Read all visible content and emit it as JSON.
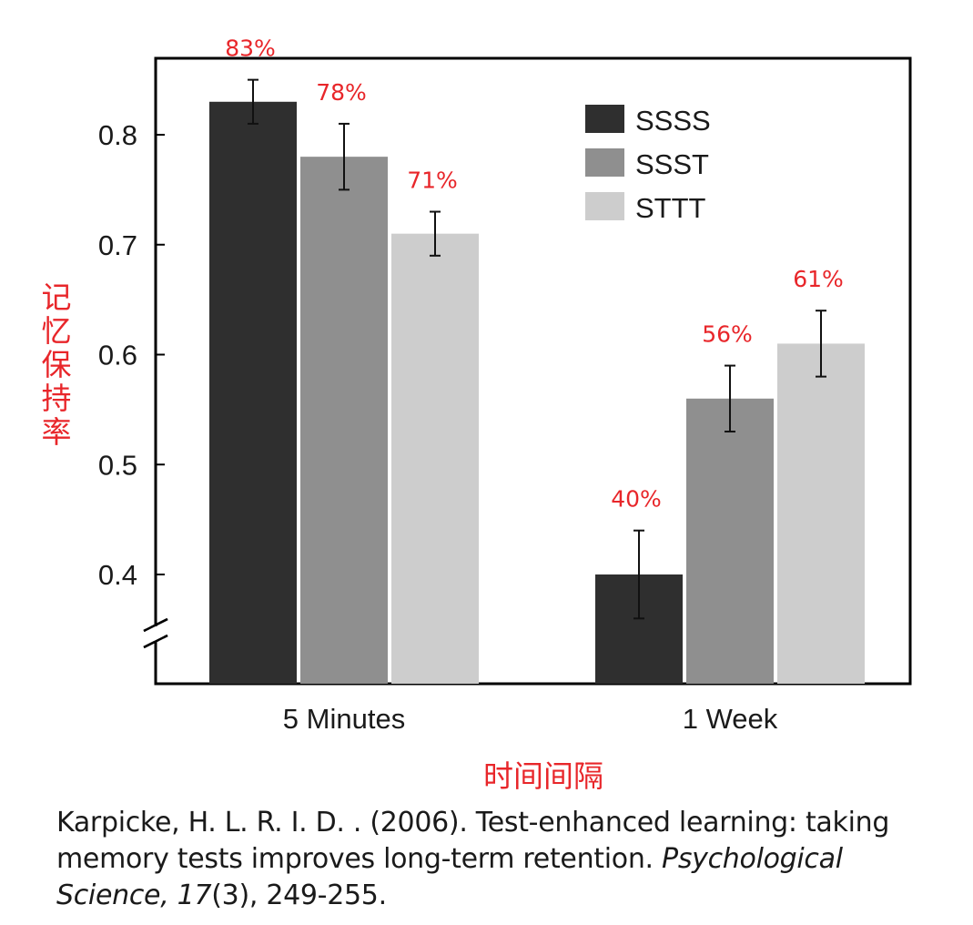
{
  "chart_data": {
    "type": "bar",
    "categories": [
      "5 Minutes",
      "1 Week"
    ],
    "series": [
      {
        "name": "SSSS",
        "values": [
          0.83,
          0.4
        ],
        "errors": [
          0.02,
          0.04
        ],
        "labels": [
          "83%",
          "40%"
        ],
        "color": "#2f2f2f"
      },
      {
        "name": "SSST",
        "values": [
          0.78,
          0.56
        ],
        "errors": [
          0.03,
          0.03
        ],
        "labels": [
          "78%",
          "56%"
        ],
        "color": "#8f8f8f"
      },
      {
        "name": "STTT",
        "values": [
          0.71,
          0.61
        ],
        "errors": [
          0.02,
          0.03
        ],
        "labels": [
          "71%",
          "61%"
        ],
        "color": "#cdcdcd"
      }
    ],
    "yticks": [
      "0.4",
      "0.5",
      "0.6",
      "0.7",
      "0.8"
    ],
    "ytick_values": [
      0.4,
      0.5,
      0.6,
      0.7,
      0.8
    ],
    "ylim": [
      0.3,
      0.9
    ],
    "ylabel": "记忆保持率",
    "xlabel": "时间间隔",
    "legend_position": "top-right",
    "axis_break": true,
    "grid": false
  },
  "citation": {
    "line1": "Karpicke, H. L. R. I. D. . (2006). Test-enhanced learning: taking",
    "line2_plain": "memory tests improves long-term retention. ",
    "line2_italic": "Psychological",
    "line3_italic": "Science, 17",
    "line3_plain": "(3), 249-255."
  }
}
